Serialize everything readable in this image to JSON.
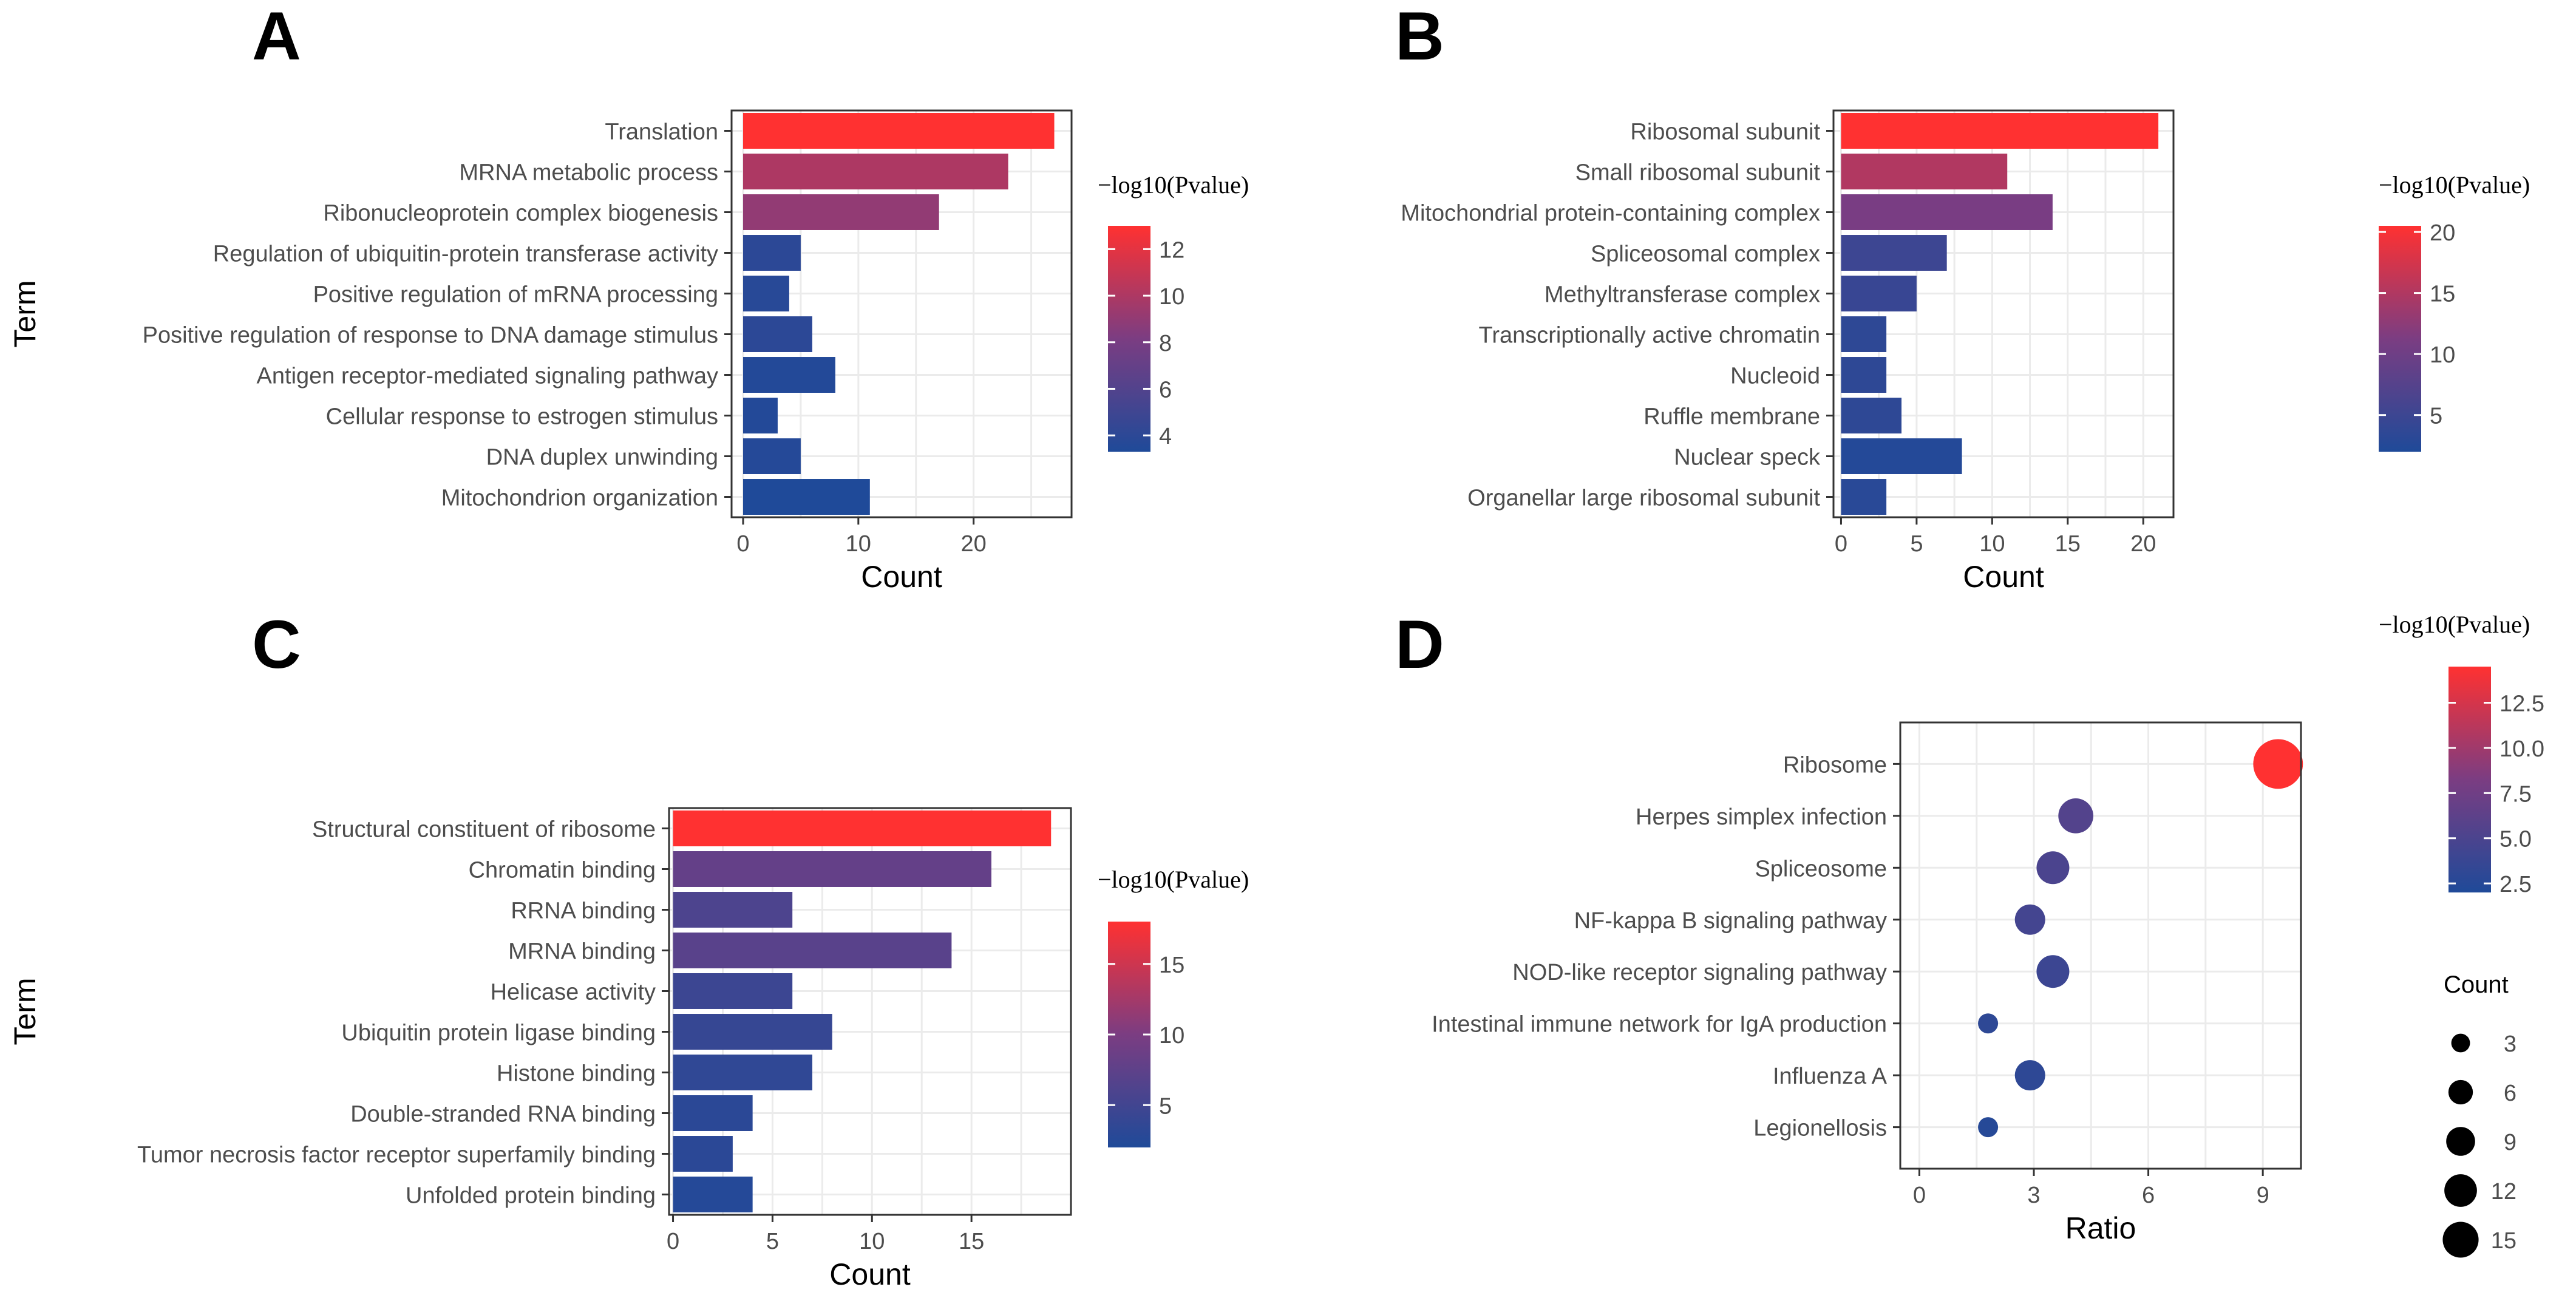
{
  "chart_data": [
    {
      "id": "A",
      "type": "bar",
      "panel_label": "A",
      "orientation": "horizontal",
      "categories": [
        "Translation",
        "MRNA metabolic process",
        "Ribonucleoprotein complex biogenesis",
        "Regulation of ubiquitin-protein transferase activity",
        "Positive regulation of mRNA processing",
        "Positive regulation of response to DNA damage stimulus",
        "Antigen receptor-mediated signaling pathway",
        "Cellular response to estrogen stimulus",
        "DNA duplex unwinding",
        "Mitochondrion organization"
      ],
      "values": [
        27,
        23,
        17,
        5,
        4,
        6,
        8,
        3,
        5,
        11
      ],
      "color_values": [
        13,
        10,
        9,
        4,
        3.8,
        4,
        3.5,
        3.5,
        3.6,
        3.3
      ],
      "color_range": [
        3.3,
        13
      ],
      "xlabel": "Count",
      "ylabel": "Term",
      "xlim": [
        -1,
        28.5
      ],
      "xticks": [
        "0",
        "10",
        "20"
      ],
      "xtick_values": [
        0,
        10,
        20
      ],
      "legend_title": "−log10(Pvalue)",
      "legend_ticks": [
        "12",
        "10",
        "8",
        "6",
        "4"
      ],
      "legend_tick_values": [
        12,
        10,
        8,
        6,
        4
      ],
      "grid": true
    },
    {
      "id": "B",
      "type": "bar",
      "panel_label": "B",
      "orientation": "horizontal",
      "categories": [
        "Ribosomal subunit",
        "Small ribosomal subunit",
        "Mitochondrial protein-containing complex",
        "Spliceosomal complex",
        "Methyltransferase complex",
        "Transcriptionally active chromatin",
        "Nucleoid",
        "Ruffle membrane",
        "Nuclear speck",
        "Organellar large ribosomal subunit"
      ],
      "values": [
        21,
        11,
        14,
        7,
        5,
        3,
        3,
        4,
        8,
        3
      ],
      "color_values": [
        20.5,
        15,
        11,
        5,
        4.5,
        3.5,
        3.5,
        3.5,
        2.5,
        3
      ],
      "color_range": [
        2,
        20.5
      ],
      "xlabel": "Count",
      "ylabel": "",
      "xlim": [
        -0.5,
        22
      ],
      "xticks": [
        "0",
        "5",
        "10",
        "15",
        "20"
      ],
      "xtick_values": [
        0,
        5,
        10,
        15,
        20
      ],
      "legend_title": "−log10(Pvalue)",
      "legend_ticks": [
        "20",
        "15",
        "10",
        "5"
      ],
      "legend_tick_values": [
        20,
        15,
        10,
        5
      ],
      "grid": true
    },
    {
      "id": "C",
      "type": "bar",
      "panel_label": "C",
      "orientation": "horizontal",
      "categories": [
        "Structural constituent of ribosome",
        "Chromatin binding",
        "RRNA binding",
        "MRNA binding",
        "Helicase activity",
        "Ubiquitin protein ligase binding",
        "Histone binding",
        "Double-stranded RNA binding",
        "Tumor necrosis factor receptor superfamily binding",
        "Unfolded protein binding"
      ],
      "values": [
        19,
        16,
        6,
        14,
        6,
        8,
        7,
        4,
        3,
        4
      ],
      "color_values": [
        18,
        8,
        6,
        7,
        4.5,
        4,
        3.5,
        3,
        3,
        2.5
      ],
      "color_range": [
        2,
        18
      ],
      "xlabel": "Count",
      "ylabel": "Term",
      "xlim": [
        -0.2,
        20
      ],
      "xticks": [
        "0",
        "5",
        "10",
        "15"
      ],
      "xtick_values": [
        0,
        5,
        10,
        15
      ],
      "legend_title": "−log10(Pvalue)",
      "legend_ticks": [
        "15",
        "10",
        "5"
      ],
      "legend_tick_values": [
        15,
        10,
        5
      ],
      "grid": true
    },
    {
      "id": "D",
      "type": "scatter",
      "panel_label": "D",
      "categories": [
        "Ribosome",
        "Herpes simplex infection",
        "Spliceosome",
        "NF-kappa B signaling pathway",
        "NOD-like receptor signaling pathway",
        "Intestinal immune network for IgA production",
        "Influenza A",
        "Legionellosis"
      ],
      "values": [
        9.4,
        4.1,
        3.5,
        2.9,
        3.5,
        1.8,
        2.9,
        1.8
      ],
      "sizes": [
        15,
        6,
        5,
        4,
        5,
        1,
        4,
        1
      ],
      "color_values": [
        14.5,
        5.5,
        5,
        4.5,
        4,
        3,
        3,
        2.5
      ],
      "color_range": [
        2,
        14.5
      ],
      "xlabel": "Ratio",
      "ylabel": "",
      "xlim": [
        -0.5,
        10
      ],
      "xticks": [
        "0",
        "3",
        "6",
        "9"
      ],
      "xtick_values": [
        0,
        3,
        6,
        9
      ],
      "legend_title": "−log10(Pvalue)",
      "legend_ticks": [
        "12.5",
        "10.0",
        "7.5",
        "5.0",
        "2.5"
      ],
      "legend_tick_values": [
        12.5,
        10,
        7.5,
        5,
        2.5
      ],
      "size_legend_title": "Count",
      "size_legend_labels": [
        "3",
        "6",
        "9",
        "12",
        "15"
      ],
      "size_legend_values": [
        3,
        6,
        9,
        12,
        15
      ],
      "grid": true
    }
  ],
  "colors": {
    "high": "#ff3131",
    "mid": "#7b3d82",
    "low": "#1f4a99",
    "grid": "#ebebeb",
    "axis": "#333333",
    "label": "#4d4d4d"
  }
}
